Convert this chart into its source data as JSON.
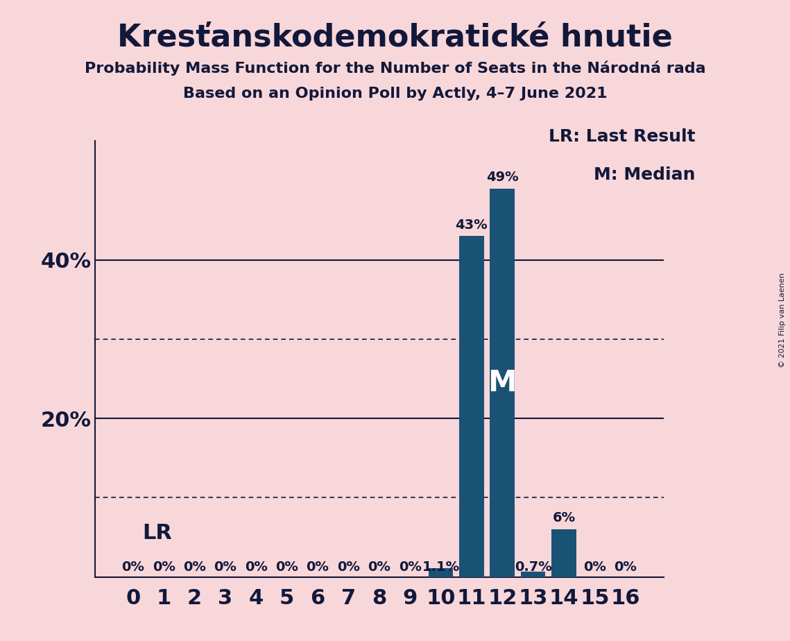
{
  "title": "Kresťanskodemokratické hnutie",
  "subtitle1": "Probability Mass Function for the Number of Seats in the Národná rada",
  "subtitle2": "Based on an Opinion Poll by Actly, 4–7 June 2021",
  "copyright": "© 2021 Filip van Laenen",
  "categories": [
    0,
    1,
    2,
    3,
    4,
    5,
    6,
    7,
    8,
    9,
    10,
    11,
    12,
    13,
    14,
    15,
    16
  ],
  "values": [
    0,
    0,
    0,
    0,
    0,
    0,
    0,
    0,
    0,
    0,
    1.1,
    43,
    49,
    0.7,
    6,
    0,
    0
  ],
  "bar_labels": [
    "0%",
    "0%",
    "0%",
    "0%",
    "0%",
    "0%",
    "0%",
    "0%",
    "0%",
    "0%",
    "1.1%",
    "43%",
    "49%",
    "0.7%",
    "6%",
    "0%",
    "0%"
  ],
  "bar_color": "#1a5276",
  "background_color": "#f8d7da",
  "text_color": "#12183a",
  "median_seat": 12,
  "lr_seat": 0,
  "lr_label": "LR",
  "lr_legend": "LR: Last Result",
  "m_legend": "M: Median",
  "ylim": [
    0,
    55
  ],
  "solid_grid": [
    20,
    40
  ],
  "dotted_grid": [
    10,
    30
  ],
  "title_fontsize": 32,
  "subtitle_fontsize": 16,
  "bar_label_fontsize": 14,
  "axis_tick_fontsize": 22,
  "legend_fontsize": 18,
  "lr_fontsize": 22,
  "m_fontsize": 30
}
